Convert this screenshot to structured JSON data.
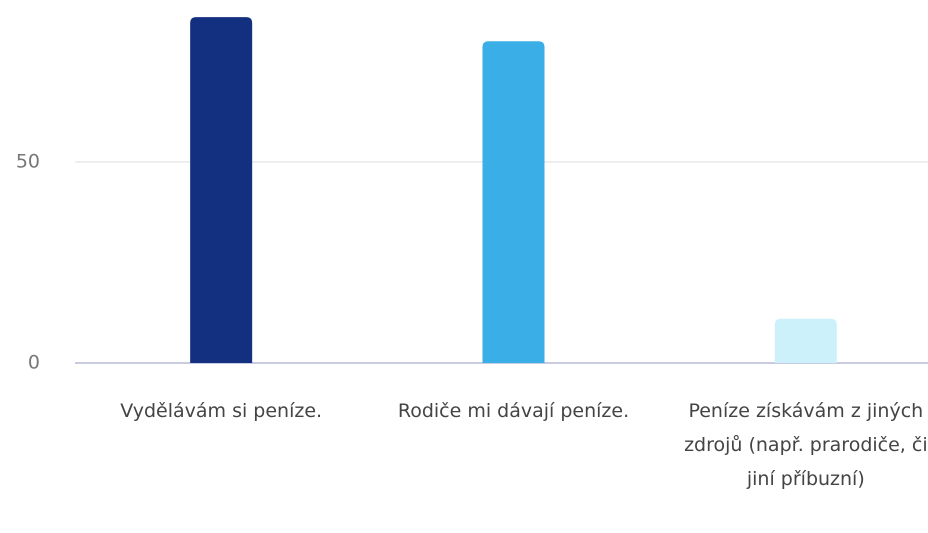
{
  "chart_data": {
    "type": "bar",
    "categories": [
      "Vydělávám si peníze.",
      "Rodiče mi dávají peníze.",
      "Peníze získávám z jiných zdrojů (např. prarodiče, či jiní příbuzní)"
    ],
    "values": [
      86,
      80,
      11
    ],
    "colors": [
      "#12307f",
      "#3aaee6",
      "#cdf1fa"
    ],
    "ylim": [
      0,
      90
    ],
    "yticks": [
      0,
      50
    ],
    "grid": true
  }
}
